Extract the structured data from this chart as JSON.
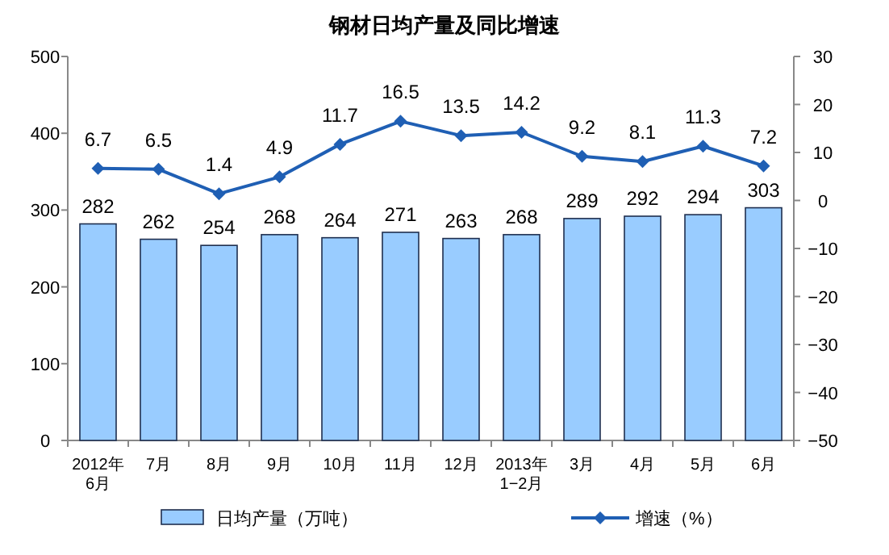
{
  "chart_data": {
    "type": "bar",
    "title": "钢材日均产量及同比增速",
    "categories": [
      "2012年\n6月",
      "7月",
      "8月",
      "9月",
      "10月",
      "11月",
      "12月",
      "2013年\n1−2月",
      "3月",
      "4月",
      "5月",
      "6月"
    ],
    "series": [
      {
        "name": "日均产量（万吨）",
        "color": "#99ccff",
        "values": [
          282,
          262,
          254,
          268,
          264,
          271,
          263,
          268,
          289,
          292,
          294,
          303
        ]
      },
      {
        "name": "增速（%）",
        "type": "line",
        "axis": "y2",
        "color": "#1f5fb4",
        "marker": "diamond",
        "values": [
          6.7,
          6.5,
          1.4,
          4.9,
          11.7,
          16.5,
          13.5,
          14.2,
          9.2,
          8.1,
          11.3,
          7.2
        ]
      }
    ],
    "ylim": [
      0,
      500
    ],
    "yticks": [
      0,
      100,
      200,
      300,
      400,
      500
    ],
    "y2lim": [
      -50,
      30
    ],
    "y2ticks": [
      -50,
      -40,
      -30,
      -20,
      -10,
      0,
      10,
      20,
      30
    ],
    "data_labels": true,
    "grid": false,
    "legend": "bottom"
  }
}
